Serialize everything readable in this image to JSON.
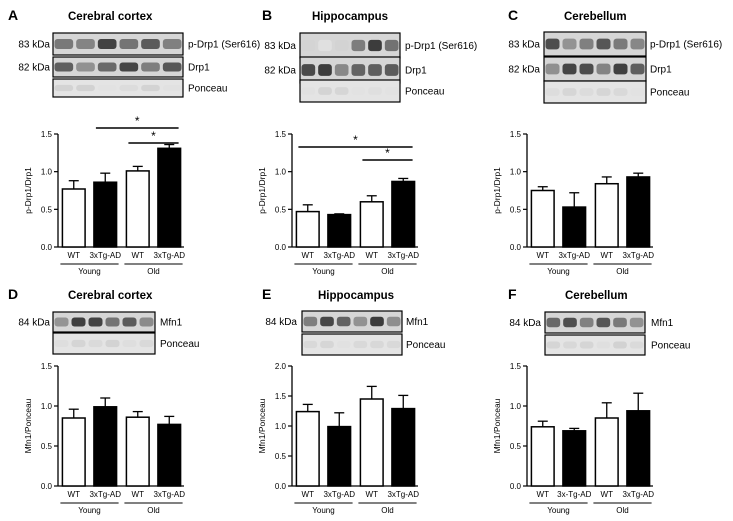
{
  "chart_data": [
    {
      "type": "bar",
      "letter": "A",
      "title": "Cerebral cortex",
      "ylabel": "p-Drp1/Drp1",
      "ylim": [
        0,
        1.5
      ],
      "yticks": [
        "0.0",
        "0.5",
        "1.0",
        "1.5"
      ],
      "categories": [
        "WT",
        "3xTg-AD",
        "WT",
        "3xTg-AD"
      ],
      "groups": [
        "Young",
        "Old"
      ],
      "values": [
        0.77,
        0.86,
        1.01,
        1.31
      ],
      "errors": [
        0.11,
        0.12,
        0.06,
        0.05
      ],
      "fills": [
        "#ffffff",
        "#000000",
        "#ffffff",
        "#000000"
      ],
      "blots": [
        {
          "kda": "83 kDa",
          "protein": "p-Drp1 (Ser616)",
          "kind": "dark"
        },
        {
          "kda": "82 kDa",
          "protein": "Drp1",
          "kind": "dark"
        },
        {
          "kda": "",
          "protein": "Ponceau",
          "kind": "light"
        }
      ],
      "significance": [
        {
          "from": 1,
          "to": 3,
          "label": "*"
        },
        {
          "from": 2,
          "to": 3,
          "label": "*"
        }
      ]
    },
    {
      "type": "bar",
      "letter": "B",
      "title": "Hippocampus",
      "ylabel": "p-Drp1/Drp1",
      "ylim": [
        0,
        1.5
      ],
      "yticks": [
        "0.0",
        "0.5",
        "1.0",
        "1.5"
      ],
      "categories": [
        "WT",
        "3xTg-AD",
        "WT",
        "3xTg-AD"
      ],
      "groups": [
        "Young",
        "Old"
      ],
      "values": [
        0.47,
        0.43,
        0.6,
        0.87
      ],
      "errors": [
        0.09,
        0.01,
        0.08,
        0.04
      ],
      "fills": [
        "#ffffff",
        "#000000",
        "#ffffff",
        "#000000"
      ],
      "blots": [
        {
          "kda": "83 kDa",
          "protein": "p-Drp1 (Ser616)",
          "kind": "faint"
        },
        {
          "kda": "82 kDa",
          "protein": "Drp1",
          "kind": "dark"
        },
        {
          "kda": "",
          "protein": "Ponceau",
          "kind": "light"
        }
      ],
      "significance": [
        {
          "from": 0,
          "to": 3,
          "label": "*"
        },
        {
          "from": 2,
          "to": 3,
          "label": "*"
        }
      ]
    },
    {
      "type": "bar",
      "letter": "C",
      "title": "Cerebellum",
      "ylabel": "p-Drp1/Drp1",
      "ylim": [
        0,
        1.5
      ],
      "yticks": [
        "0.0",
        "0.5",
        "1.0",
        "1.5"
      ],
      "categories": [
        "WT",
        "3xTg-AD",
        "WT",
        "3xTg-AD"
      ],
      "groups": [
        "Young",
        "Old"
      ],
      "values": [
        0.75,
        0.53,
        0.84,
        0.93
      ],
      "errors": [
        0.05,
        0.19,
        0.09,
        0.05
      ],
      "fills": [
        "#ffffff",
        "#000000",
        "#ffffff",
        "#000000"
      ],
      "blots": [
        {
          "kda": "83 kDa",
          "protein": "p-Drp1 (Ser616)",
          "kind": "dark"
        },
        {
          "kda": "82 kDa",
          "protein": "Drp1",
          "kind": "dark"
        },
        {
          "kda": "",
          "protein": "Ponceau",
          "kind": "light"
        }
      ],
      "significance": []
    },
    {
      "type": "bar",
      "letter": "D",
      "title": "Cerebral cortex",
      "ylabel": "Mfn1/Ponceau",
      "ylim": [
        0,
        1.5
      ],
      "yticks": [
        "0.0",
        "0.5",
        "1.0",
        "1.5"
      ],
      "categories": [
        "WT",
        "3xTg-AD",
        "WT",
        "3xTg-AD"
      ],
      "groups": [
        "Young",
        "Old"
      ],
      "values": [
        0.85,
        0.99,
        0.86,
        0.77
      ],
      "errors": [
        0.11,
        0.11,
        0.07,
        0.1
      ],
      "fills": [
        "#ffffff",
        "#000000",
        "#ffffff",
        "#000000"
      ],
      "blots": [
        {
          "kda": "84 kDa",
          "protein": "Mfn1",
          "kind": "dark"
        },
        {
          "kda": "",
          "protein": "Ponceau",
          "kind": "light"
        }
      ],
      "significance": []
    },
    {
      "type": "bar",
      "letter": "E",
      "title": "Hippocampus",
      "ylabel": "Mfn1/Ponceau",
      "ylim": [
        0,
        2.0
      ],
      "yticks": [
        "0.0",
        "0.5",
        "1.0",
        "1.5",
        "2.0"
      ],
      "categories": [
        "WT",
        "3xTg-AD",
        "WT",
        "3xTg-AD"
      ],
      "groups": [
        "Young",
        "Old"
      ],
      "values": [
        1.24,
        0.99,
        1.45,
        1.29
      ],
      "errors": [
        0.12,
        0.23,
        0.21,
        0.22
      ],
      "fills": [
        "#ffffff",
        "#000000",
        "#ffffff",
        "#000000"
      ],
      "blots": [
        {
          "kda": "84 kDa",
          "protein": "Mfn1",
          "kind": "dark"
        },
        {
          "kda": "",
          "protein": "Ponceau",
          "kind": "light"
        }
      ],
      "significance": []
    },
    {
      "type": "bar",
      "letter": "F",
      "title": "Cerebellum",
      "ylabel": "Mfn1/Ponceau",
      "ylim": [
        0,
        1.5
      ],
      "yticks": [
        "0.0",
        "0.5",
        "1.0",
        "1.5"
      ],
      "categories": [
        "WT",
        "3x-Tg-AD",
        "WT",
        "3xTg-AD"
      ],
      "groups": [
        "Young",
        "Old"
      ],
      "values": [
        0.74,
        0.69,
        0.85,
        0.94
      ],
      "errors": [
        0.07,
        0.03,
        0.19,
        0.22
      ],
      "fills": [
        "#ffffff",
        "#000000",
        "#ffffff",
        "#000000"
      ],
      "blots": [
        {
          "kda": "84 kDa",
          "protein": "Mfn1",
          "kind": "dark"
        },
        {
          "kda": "",
          "protein": "Ponceau",
          "kind": "light"
        }
      ],
      "significance": []
    }
  ]
}
